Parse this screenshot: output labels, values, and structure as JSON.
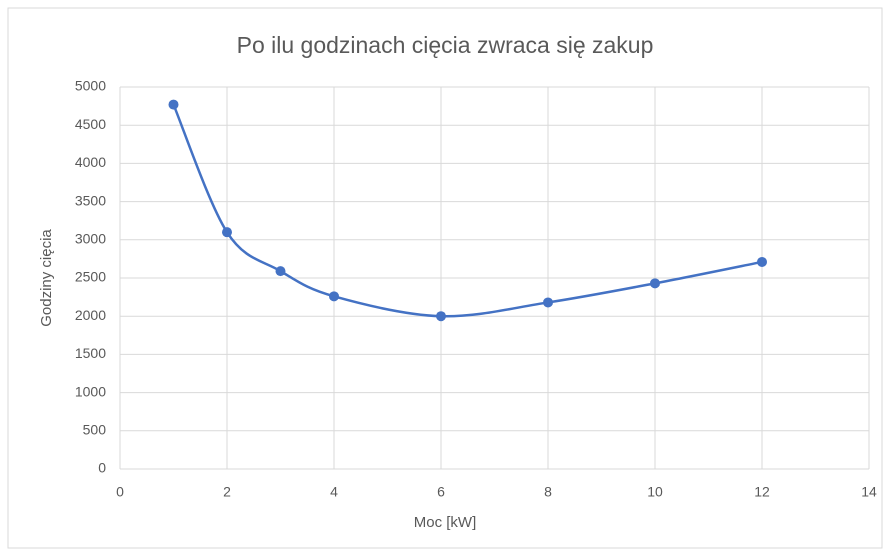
{
  "chart_data": {
    "type": "scatter_smooth",
    "title": "Po ilu godzinach cięcia zwraca się zakup",
    "x_label": "Moc [kW]",
    "y_label": "Godziny cięcia",
    "x": [
      1,
      2,
      3,
      4,
      6,
      8,
      10,
      12
    ],
    "series": [
      {
        "name": "Godziny cięcia",
        "color": "#4472c4",
        "values": [
          4770,
          3100,
          2590,
          2260,
          2000,
          2180,
          2430,
          2710
        ]
      }
    ],
    "xlim": [
      0,
      14
    ],
    "xticks": [
      0,
      2,
      4,
      6,
      8,
      10,
      12,
      14
    ],
    "ylim": [
      0,
      5000
    ],
    "yticks": [
      0,
      500,
      1000,
      1500,
      2000,
      2500,
      3000,
      3500,
      4000,
      4500,
      5000
    ],
    "grid": true
  }
}
